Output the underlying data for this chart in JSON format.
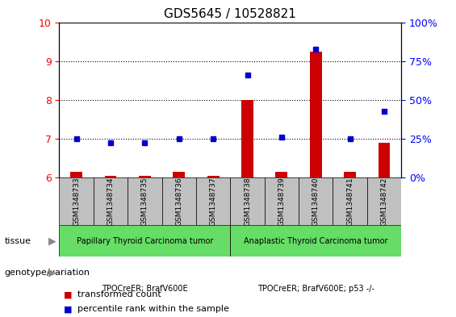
{
  "title": "GDS5645 / 10528821",
  "samples": [
    "GSM1348733",
    "GSM1348734",
    "GSM1348735",
    "GSM1348736",
    "GSM1348737",
    "GSM1348738",
    "GSM1348739",
    "GSM1348740",
    "GSM1348741",
    "GSM1348742"
  ],
  "red_values": [
    6.15,
    6.05,
    6.05,
    6.15,
    6.05,
    8.0,
    6.15,
    9.25,
    6.15,
    6.9
  ],
  "blue_values": [
    7.0,
    6.9,
    6.9,
    7.0,
    7.0,
    8.65,
    7.05,
    9.3,
    7.0,
    7.7
  ],
  "ylim": [
    6,
    10
  ],
  "yticks_left": [
    6,
    7,
    8,
    9,
    10
  ],
  "yticks_right": [
    0,
    25,
    50,
    75,
    100
  ],
  "tissue_label1": "Papillary Thyroid Carcinoma tumor",
  "tissue_label2": "Anaplastic Thyroid Carcinoma tumor",
  "tissue_color1": "#66DD66",
  "tissue_color2": "#66DD66",
  "geno_label1": "TPOCreER; BrafV600E",
  "geno_label2": "TPOCreER; BrafV600E; p53 -/-",
  "geno_color": "#EE82EE",
  "bar_color": "#CC0000",
  "dot_color": "#0000CC",
  "sample_bg_color": "#C0C0C0",
  "bar_width": 0.35
}
